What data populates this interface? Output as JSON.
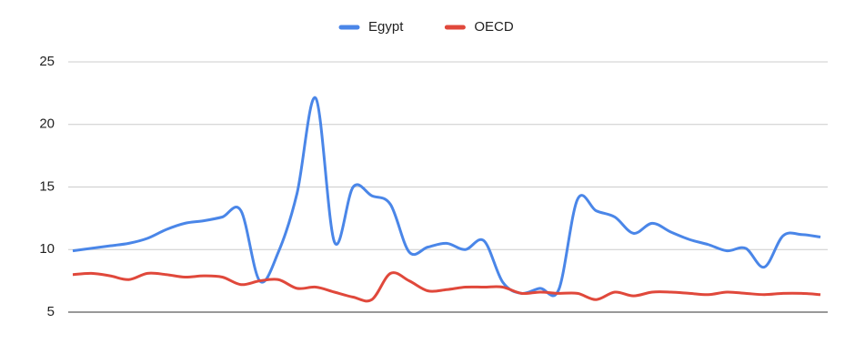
{
  "chart_data": {
    "type": "line",
    "x": [
      0,
      1,
      2,
      3,
      4,
      5,
      6,
      7,
      8,
      9,
      10,
      11,
      12,
      13,
      14,
      15,
      16,
      17,
      18,
      19,
      20,
      21,
      22,
      23,
      24,
      25,
      26,
      27,
      28,
      29,
      30,
      31,
      32,
      33,
      34,
      35,
      36,
      37,
      38,
      39,
      40
    ],
    "series": [
      {
        "name": "Egypt",
        "color": "#4a86e8",
        "values": [
          9.9,
          10.1,
          10.3,
          10.5,
          10.9,
          11.6,
          12.1,
          12.3,
          12.6,
          13.1,
          7.5,
          9.8,
          14.5,
          22.1,
          10.6,
          15.0,
          14.3,
          13.6,
          9.8,
          10.2,
          10.5,
          10.0,
          10.7,
          7.4,
          6.5,
          6.9,
          6.8,
          14.0,
          13.1,
          12.6,
          11.3,
          12.1,
          11.4,
          10.8,
          10.4,
          9.9,
          10.1,
          8.6,
          11.1,
          11.2,
          11.0
        ]
      },
      {
        "name": "OECD",
        "color": "#e0483b",
        "values": [
          8.0,
          8.1,
          7.9,
          7.6,
          8.1,
          8.0,
          7.8,
          7.9,
          7.8,
          7.2,
          7.5,
          7.6,
          6.9,
          7.0,
          6.6,
          6.2,
          6.0,
          8.1,
          7.5,
          6.7,
          6.8,
          7.0,
          7.0,
          7.0,
          6.5,
          6.6,
          6.5,
          6.5,
          6.0,
          6.6,
          6.3,
          6.6,
          6.6,
          6.5,
          6.4,
          6.6,
          6.5,
          6.4,
          6.5,
          6.5,
          6.4
        ]
      }
    ],
    "xlim": [
      0,
      40
    ],
    "ylim": [
      5,
      25
    ],
    "yticks": [
      5,
      10,
      15,
      20,
      25
    ],
    "grid": true,
    "legend": "top"
  }
}
